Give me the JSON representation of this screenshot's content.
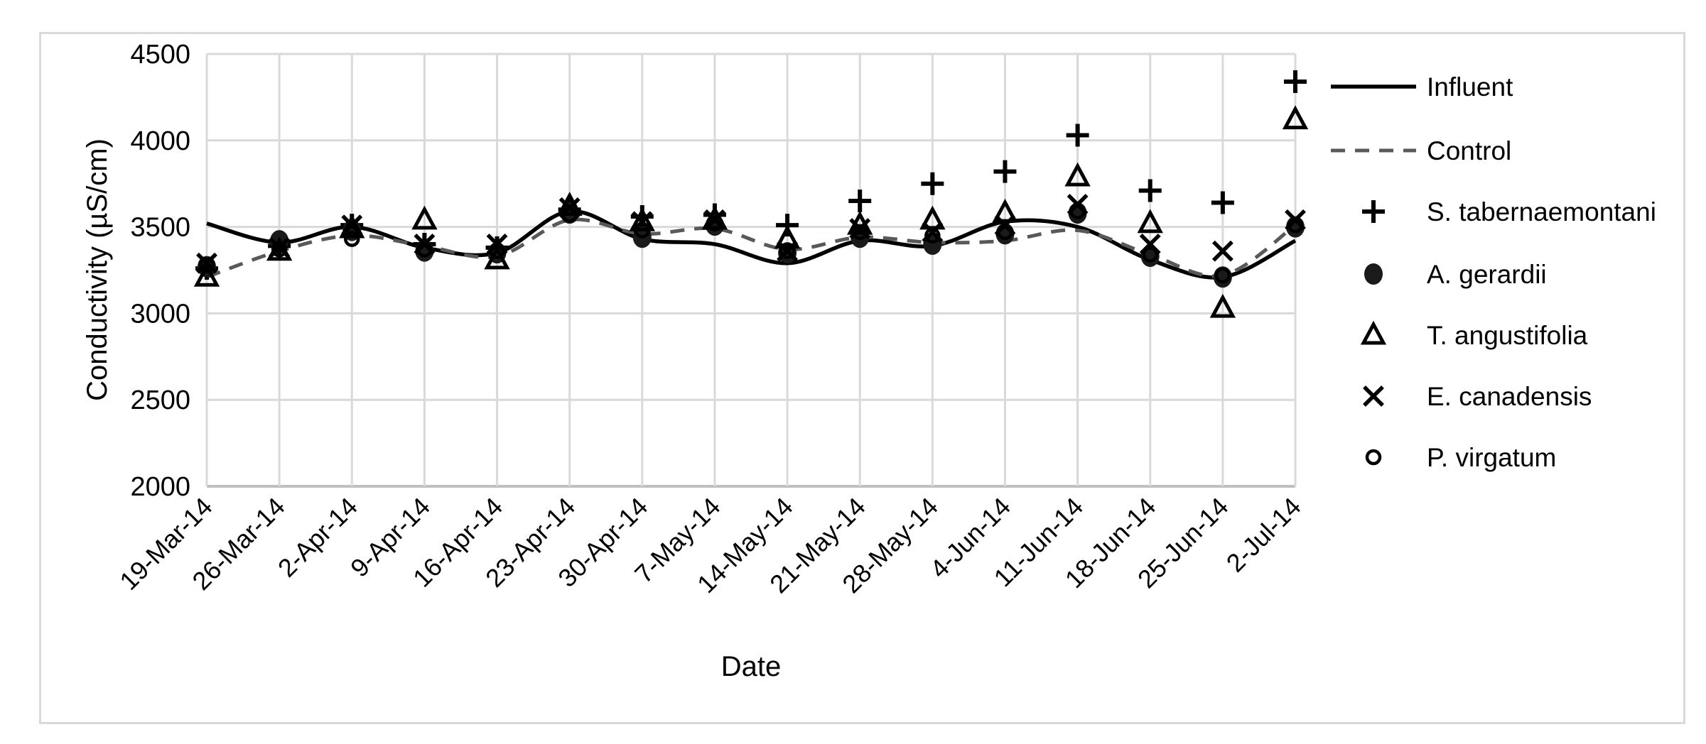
{
  "chart": {
    "ylabel": "Conductivity (µS/cm)",
    "xlabel": "Date"
  },
  "chart_data": {
    "type": "line",
    "title": "",
    "xlabel": "Date",
    "ylabel": "Conductivity (µS/cm)",
    "ylim": [
      2000,
      4500
    ],
    "yticks": [
      2000,
      2500,
      3000,
      3500,
      4000,
      4500
    ],
    "grid": true,
    "legend_position": "right",
    "categories": [
      "19-Mar-14",
      "26-Mar-14",
      "2-Apr-14",
      "9-Apr-14",
      "16-Apr-14",
      "23-Apr-14",
      "30-Apr-14",
      "7-May-14",
      "14-May-14",
      "21-May-14",
      "28-May-14",
      "4-Jun-14",
      "11-Jun-14",
      "18-Jun-14",
      "25-Jun-14",
      "2-Jul-14"
    ],
    "series": [
      {
        "name": "Influent",
        "style": "line-solid",
        "color": "#000000",
        "values": [
          3520,
          3410,
          3500,
          3380,
          3350,
          3590,
          3430,
          3400,
          3290,
          3420,
          3390,
          3530,
          3500,
          3310,
          3210,
          3420
        ]
      },
      {
        "name": "Control",
        "style": "line-dashed",
        "color": "#595959",
        "values": [
          3210,
          3360,
          3450,
          3390,
          3330,
          3540,
          3460,
          3490,
          3370,
          3440,
          3410,
          3420,
          3480,
          3340,
          3220,
          3510
        ]
      },
      {
        "name": "S. tabernaemontani",
        "style": "marker-plus",
        "color": "#000000",
        "values": [
          3260,
          3390,
          3510,
          3400,
          3380,
          3600,
          3560,
          3570,
          3510,
          3650,
          3750,
          3820,
          4030,
          3710,
          3640,
          4340
        ]
      },
      {
        "name": "A. gerardii",
        "style": "marker-filled-circle",
        "color": "#1a1a1a",
        "values": [
          3270,
          3420,
          3480,
          3360,
          3350,
          3580,
          3440,
          3510,
          3350,
          3440,
          3400,
          3460,
          3580,
          3330,
          3210,
          3500
        ]
      },
      {
        "name": "T. angustifolia",
        "style": "marker-open-triangle",
        "color": "#000000",
        "values": [
          3210,
          3360,
          3490,
          3540,
          3310,
          3620,
          3530,
          3540,
          3430,
          3510,
          3540,
          3580,
          3790,
          3520,
          3030,
          4120
        ]
      },
      {
        "name": "E. canadensis",
        "style": "marker-x",
        "color": "#000000",
        "values": [
          3290,
          3380,
          3510,
          3400,
          3400,
          3610,
          3530,
          3540,
          3360,
          3490,
          3470,
          3510,
          3630,
          3400,
          3360,
          3540
        ]
      },
      {
        "name": "P. virgatum",
        "style": "marker-open-circle",
        "color": "#000000",
        "values": [
          3280,
          3370,
          3430,
          3370,
          3360,
          3570,
          3480,
          3520,
          3360,
          3470,
          3450,
          3470,
          3590,
          3340,
          3220,
          3510
        ]
      }
    ],
    "colors": {
      "gridline": "#d9d9d9",
      "axis_line": "#bfbfbf",
      "control_dash": "#595959",
      "text": "#000000",
      "frame_border": "#d9d9d9"
    }
  }
}
